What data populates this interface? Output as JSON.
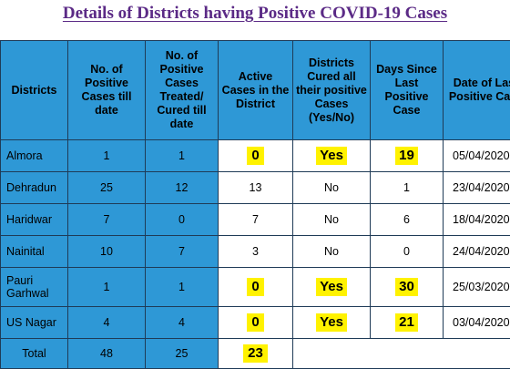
{
  "title": "Details of Districts having Positive COVID-19 Cases",
  "headers": {
    "districts": "Districts",
    "positive_cases": "No. of Positive Cases till date",
    "treated": "No. of Positive Cases Treated/ Cured till date",
    "active": "Active Cases in the District",
    "cured_all": "Districts Cured all their positive Cases (Yes/No)",
    "days_since": "Days Since Last Positive Case",
    "last_date": "Date of Last Positive Case"
  },
  "rows": [
    {
      "district": "Almora",
      "positive": "1",
      "treated": "1",
      "active": "0",
      "cured": "Yes",
      "days": "19",
      "date": "05/04/2020"
    },
    {
      "district": "Dehradun",
      "positive": "25",
      "treated": "12",
      "active": "13",
      "cured": "No",
      "days": "1",
      "date": "23/04/2020"
    },
    {
      "district": "Haridwar",
      "positive": "7",
      "treated": "0",
      "active": "7",
      "cured": "No",
      "days": "6",
      "date": "18/04/2020"
    },
    {
      "district": "Nainital",
      "positive": "10",
      "treated": "7",
      "active": "3",
      "cured": "No",
      "days": "0",
      "date": "24/04/2020"
    },
    {
      "district": "Pauri Garhwal",
      "positive": "1",
      "treated": "1",
      "active": "0",
      "cured": "Yes",
      "days": "30",
      "date": "25/03/2020"
    },
    {
      "district": "US Nagar",
      "positive": "4",
      "treated": "4",
      "active": "0",
      "cured": "Yes",
      "days": "21",
      "date": "03/04/2020"
    }
  ],
  "total": {
    "label": "Total",
    "positive": "48",
    "treated": "25",
    "active": "23"
  },
  "colors": {
    "header_bg": "#2e98d6",
    "highlight": "#fff200",
    "title": "#5b2a86",
    "border": "#1f3b57"
  }
}
